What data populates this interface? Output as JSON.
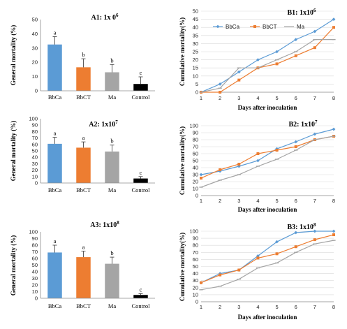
{
  "colors": {
    "BbCa": "#5b9bd5",
    "BbCT": "#ed7d31",
    "Ma": "#a5a5a5",
    "Control": "#000000"
  },
  "chart_data": [
    {
      "type": "bar",
      "title": "A1: 1x 0",
      "title_sup": "6",
      "ylabel": "General mortality  (%)",
      "xlabel": "",
      "categories": [
        "BbCa",
        "BbCT",
        "Ma",
        "Control"
      ],
      "values": [
        32.5,
        16.5,
        13,
        4.8
      ],
      "errors": [
        5.5,
        6,
        5.5,
        5
      ],
      "letters": [
        "a",
        "b",
        "b",
        "c"
      ],
      "ylim": [
        0,
        50
      ],
      "yticks": [
        0,
        10,
        20,
        30,
        40,
        50
      ]
    },
    {
      "type": "bar",
      "title": "A2: 1x10",
      "title_sup": "7",
      "ylabel": "General mortality  (%)",
      "xlabel": "",
      "categories": [
        "BbCa",
        "BbCT",
        "Ma",
        "Control"
      ],
      "values": [
        61,
        55,
        49,
        7
      ],
      "errors": [
        10,
        9,
        10,
        3
      ],
      "letters": [
        "a",
        "a",
        "b",
        "c"
      ],
      "ylim": [
        0,
        100
      ],
      "yticks": [
        0,
        10,
        20,
        30,
        40,
        50,
        60,
        70,
        80,
        90,
        100
      ]
    },
    {
      "type": "bar",
      "title": "A3: 1x10",
      "title_sup": "8",
      "ylabel": "General mortality  (%)",
      "xlabel": "",
      "categories": [
        "BbCa",
        "BbCT",
        "Ma",
        "Control"
      ],
      "values": [
        69,
        62,
        52,
        5
      ],
      "errors": [
        11,
        9,
        10,
        2
      ],
      "letters": [
        "a",
        "a",
        "b",
        "c"
      ],
      "ylim": [
        0,
        100
      ],
      "yticks": [
        0,
        10,
        20,
        30,
        40,
        50,
        60,
        70,
        80,
        90,
        100
      ]
    },
    {
      "type": "line",
      "title": "B1: 1x10",
      "title_sup": "6",
      "ylabel": "Cumulative mortality(%)",
      "xlabel": "Days after inoculation",
      "x": [
        1,
        2,
        3,
        4,
        5,
        6,
        7,
        8
      ],
      "ylim": [
        0,
        50
      ],
      "yticks": [
        0,
        5,
        10,
        15,
        20,
        25,
        30,
        35,
        40,
        45,
        50
      ],
      "legend": "top",
      "series": [
        {
          "name": "BbCa",
          "values": [
            0,
            5,
            12.5,
            20,
            25,
            32.5,
            37.5,
            45
          ]
        },
        {
          "name": "BbCT",
          "values": [
            0,
            0,
            7.5,
            15,
            17.5,
            22.5,
            27.5,
            40
          ]
        },
        {
          "name": "Ma",
          "values": [
            0,
            2.5,
            15,
            15,
            20,
            25,
            32.5,
            32.5
          ]
        }
      ]
    },
    {
      "type": "line",
      "title": "B2: 1x10",
      "title_sup": "7",
      "ylabel": "Cumulative mortality(%)",
      "xlabel": "Days after inoculation",
      "x": [
        1,
        2,
        3,
        4,
        5,
        6,
        7,
        8
      ],
      "ylim": [
        0,
        100
      ],
      "yticks": [
        0,
        10,
        20,
        30,
        40,
        50,
        60,
        70,
        80,
        90,
        100
      ],
      "series": [
        {
          "values": [
            30,
            35,
            42,
            50,
            67,
            77,
            88,
            95
          ]
        },
        {
          "values": [
            25,
            37,
            45,
            60,
            65,
            70,
            80,
            85
          ]
        },
        {
          "values": [
            12,
            22,
            30,
            42,
            52,
            65,
            80,
            85
          ]
        }
      ]
    },
    {
      "type": "line",
      "title": "B3: 1x10",
      "title_sup": "8",
      "ylabel": "Cumulative mortality(%)",
      "xlabel": "Days after inoculation",
      "x": [
        1,
        2,
        3,
        4,
        5,
        6,
        7,
        8
      ],
      "ylim": [
        0,
        100
      ],
      "yticks": [
        0,
        10,
        20,
        30,
        40,
        50,
        60,
        70,
        80,
        90,
        100
      ],
      "series": [
        {
          "values": [
            27,
            40,
            45,
            65,
            85,
            98,
            100,
            100
          ]
        },
        {
          "values": [
            27,
            38,
            45,
            62,
            68,
            78,
            88,
            95
          ]
        },
        {
          "values": [
            17,
            22,
            32,
            48,
            55,
            70,
            82,
            87
          ]
        }
      ]
    }
  ]
}
